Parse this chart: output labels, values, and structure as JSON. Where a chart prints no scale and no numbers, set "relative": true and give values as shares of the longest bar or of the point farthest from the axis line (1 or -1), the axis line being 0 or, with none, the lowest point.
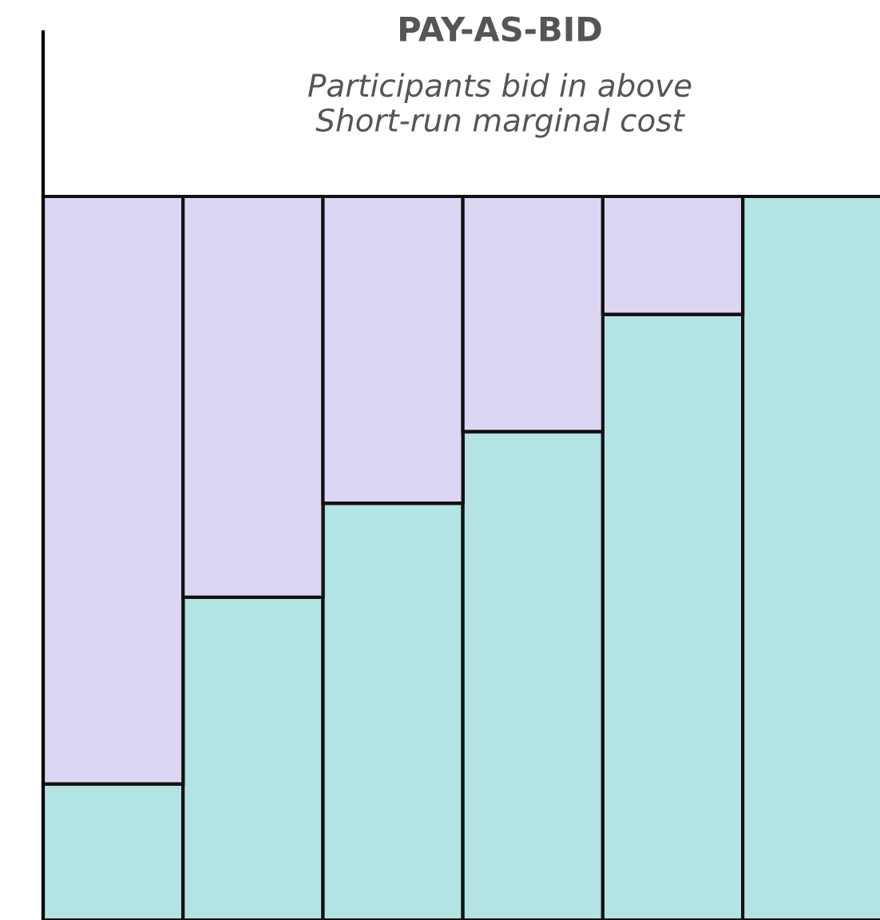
{
  "chart_data": {
    "type": "bar",
    "title": "PAY-AS-BID",
    "subtitle": "Participants bid in above\nShort-run marginal cost",
    "categories": [
      null,
      null,
      null,
      null,
      null,
      null
    ],
    "stacked": true,
    "relative": true,
    "series": [
      {
        "color": "#b3e3e3",
        "values": [
          0.188,
          0.446,
          0.576,
          0.675,
          0.837,
          1.0
        ]
      },
      {
        "color": "#dcd6f3",
        "values": [
          0.812,
          0.554,
          0.424,
          0.325,
          0.163,
          0.0
        ]
      }
    ],
    "grid": false,
    "legend": false
  }
}
